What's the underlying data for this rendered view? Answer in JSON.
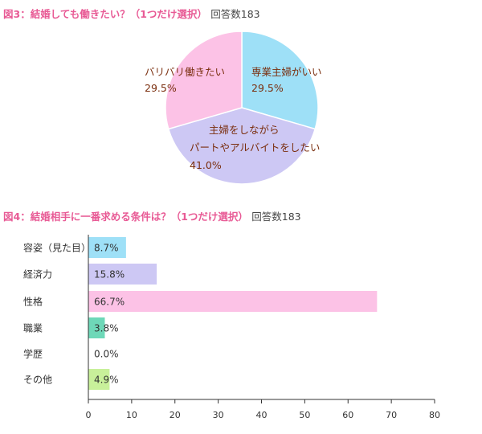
{
  "colors": {
    "title_accent": "#e85a95",
    "pie_label": "#7a2e0e",
    "cyan": "#9ee0f7",
    "lavender": "#cdc8f4",
    "pink": "#fcc2e6",
    "mint": "#6ed8b8",
    "green": "#c8f09a",
    "axis": "#333333"
  },
  "chart1": {
    "title": "図3：結婚しても働きたい？（1つだけ選択）",
    "response_count": "回答数183"
  },
  "chart2": {
    "title": "図4：結婚相手に一番求める条件は？（1つだけ選択）",
    "response_count": "回答数183"
  },
  "chart_data": [
    {
      "type": "pie",
      "title": "図3：結婚しても働きたい？（1つだけ選択）",
      "slices": [
        {
          "label": "専業主婦がいい",
          "value": 29.5,
          "value_label": "29.5%",
          "color": "#9ee0f7"
        },
        {
          "label": "主婦をしながらパートやアルバイトをしたい",
          "label_lines": [
            "主婦をしながら",
            "パートやアルバイトをしたい"
          ],
          "value": 41.0,
          "value_label": "41.0%",
          "color": "#cdc8f4"
        },
        {
          "label": "バリバリ働きたい",
          "value": 29.5,
          "value_label": "29.5%",
          "color": "#fcc2e6"
        }
      ]
    },
    {
      "type": "bar",
      "orientation": "horizontal",
      "title": "図4：結婚相手に一番求める条件は？（1つだけ選択）",
      "categories": [
        "容姿（見た目）",
        "経済力",
        "性格",
        "職業",
        "学歴",
        "その他"
      ],
      "values": [
        8.7,
        15.8,
        66.7,
        3.8,
        0.0,
        4.9
      ],
      "value_labels": [
        "8.7%",
        "15.8%",
        "66.7%",
        "3.8%",
        "0.0%",
        "4.9%"
      ],
      "colors": [
        "#9ee0f7",
        "#cdc8f4",
        "#fcc2e6",
        "#6ed8b8",
        "#cccccc",
        "#c8f09a"
      ],
      "xlim": [
        0,
        80
      ],
      "xticks": [
        0,
        10,
        20,
        30,
        40,
        50,
        60,
        70,
        80
      ]
    }
  ]
}
